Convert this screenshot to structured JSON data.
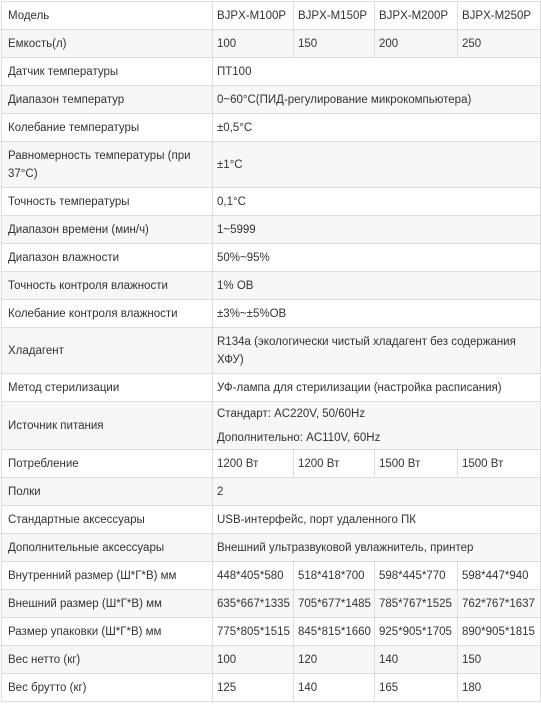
{
  "rows": [
    {
      "label": "Модель",
      "values": [
        "BJPX-M100P",
        "BJPX-M150P",
        "BJPX-M200P",
        "BJPX-M250P"
      ]
    },
    {
      "label": "Емкость(л)",
      "values": [
        "100",
        "150",
        "200",
        "250"
      ]
    },
    {
      "label": "Датчик температуры",
      "value": "ПТ100"
    },
    {
      "label": "Диапазон температур",
      "value": "0~60°C(ПИД-регулирование микрокомпьютера)"
    },
    {
      "label": "Колебание температуры",
      "value": "±0,5°C"
    },
    {
      "label_lines": [
        "Равномерность температуры (при",
        "37°C)"
      ],
      "value": "±1°C"
    },
    {
      "label": "Точность температуры",
      "value": "0,1°C"
    },
    {
      "label": "Диапазон времени (мин/ч)",
      "value": "1~5999"
    },
    {
      "label": "Диапазон влажности",
      "value": "50%~95%"
    },
    {
      "label": "Точность контроля влажности",
      "value": "1% OB"
    },
    {
      "label": "Колебание контроля влажности",
      "value": "±3%~±5%OB"
    },
    {
      "label": "Хладагент",
      "value_lines": [
        "R134a (экологически чистый хладагент без содержания",
        "ХФУ)"
      ]
    },
    {
      "label": "Метод стерилизации",
      "value": "УФ-лампа для стерилизации (настройка расписания)"
    },
    {
      "label": "Источник питания",
      "value_lines": [
        "Стандарт: AC220V, 50/60Hz",
        "Дополнительно: AC110V, 60Hz"
      ]
    },
    {
      "label": "Потребление",
      "values": [
        "1200 Вт",
        "1200 Вт",
        "1500 Вт",
        "1500 Вт"
      ]
    },
    {
      "label": "Полки",
      "value": "2"
    },
    {
      "label": "Стандартные аксессуары",
      "value": "USB-интерфейс, порт удаленного ПК"
    },
    {
      "label": "Дополнительные аксессуары",
      "value": "Внешний ультразвуковой увлажнитель, принтер"
    },
    {
      "label": "Внутренний размер (Ш*Г*В) мм",
      "values": [
        "448*405*580",
        "518*418*700",
        "598*445*770",
        "598*447*940"
      ]
    },
    {
      "label": "Внешний размер (Ш*Г*В) мм",
      "values": [
        "635*667*1335",
        "705*677*1485",
        "785*767*1525",
        "762*767*1637"
      ]
    },
    {
      "label": "Размер упаковки (Ш*Г*В) мм",
      "values": [
        "775*805*1515",
        "845*815*1660",
        "925*905*1705",
        "890*905*1815"
      ]
    },
    {
      "label": "Вес нетто (кг)",
      "values": [
        "100",
        "120",
        "140",
        "150"
      ]
    },
    {
      "label": "Вес брутто (кг)",
      "values": [
        "125",
        "140",
        "165",
        "180"
      ]
    }
  ]
}
